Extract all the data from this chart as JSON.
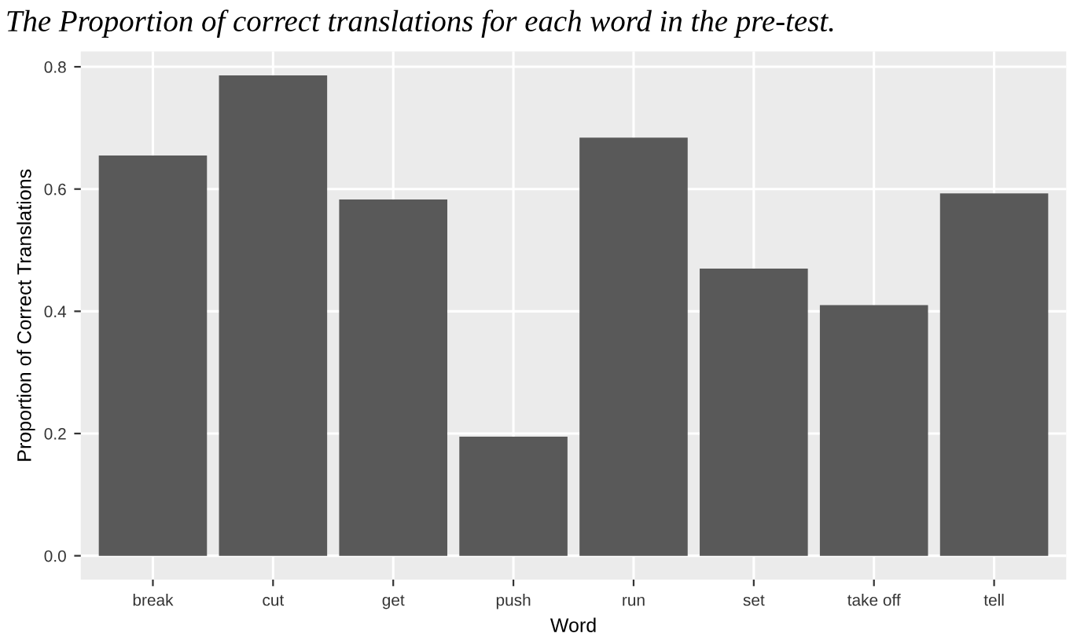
{
  "chart_data": {
    "type": "bar",
    "title": "The Proportion of correct translations for each word in the pre-test.",
    "xlabel": "Word",
    "ylabel": "Proportion of Correct Translations",
    "categories": [
      "break",
      "cut",
      "get",
      "push",
      "run",
      "set",
      "take off",
      "tell"
    ],
    "values": [
      0.655,
      0.786,
      0.583,
      0.195,
      0.684,
      0.47,
      0.41,
      0.593
    ],
    "color": "#595959",
    "ylim": [
      -0.039,
      0.825
    ],
    "yticks": [
      {
        "value": 0,
        "label": "0.0"
      },
      {
        "value": 0.2,
        "label": "0.2"
      },
      {
        "value": 0.4,
        "label": "0.4"
      },
      {
        "value": 0.6,
        "label": "0.6"
      },
      {
        "value": 0.8,
        "label": "0.8"
      }
    ],
    "grid": true
  }
}
